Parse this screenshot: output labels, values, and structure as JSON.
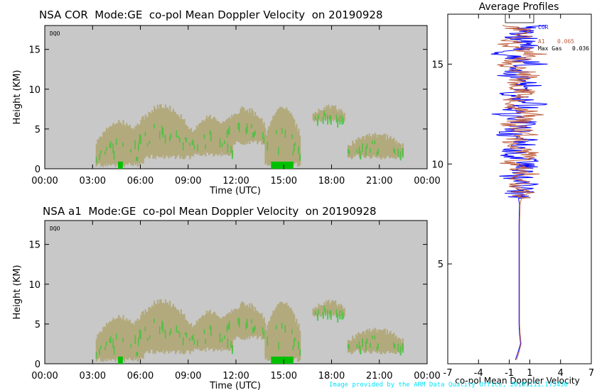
{
  "panels": [
    {
      "title": "NSA COR  Mode:GE  co-pol Mean Doppler Velocity  on 20190928",
      "badge": "DQO",
      "ylabel": "Height (KM)",
      "xlabel": "Time (UTC)"
    },
    {
      "title": "NSA a1  Mode:GE  co-pol Mean Doppler Velocity  on 20190928",
      "badge": "DQO",
      "ylabel": "Height (KM)",
      "xlabel": "Time (UTC)"
    }
  ],
  "profile": {
    "title": "Average Profiles",
    "xlabel": "co-pol Mean Doppler Velocity",
    "legend": [
      {
        "label": "COR",
        "color": "#0000ff"
      },
      {
        "label": "A1",
        "value": "0.065",
        "color": "#c06040"
      },
      {
        "label": "Max Gas",
        "value": "0.036",
        "color": "#000000"
      }
    ]
  },
  "footer": "Image provided by the ARM Data Quality Office, 20191111.175430",
  "colors": {
    "background": "#c8c8c8",
    "cloud": "#b2aa7d",
    "updraft": "#33c733",
    "cor_line": "#0000ff",
    "a1_line": "#c06040"
  },
  "chart_data": [
    {
      "type": "heatmap",
      "title": "NSA COR  Mode:GE  co-pol Mean Doppler Velocity  on 20190928",
      "xlabel": "Time (UTC)",
      "ylabel": "Height (KM)",
      "xticks": [
        "00:00",
        "03:00",
        "06:00",
        "09:00",
        "12:00",
        "15:00",
        "18:00",
        "21:00",
        "00:00"
      ],
      "yticks": [
        0,
        5,
        10,
        15
      ],
      "xlim_hours": [
        0,
        24
      ],
      "ylim": [
        0,
        18
      ],
      "cloud_layers": [
        {
          "t_start": 3.2,
          "t_end": 6.2,
          "base_km": 0.2,
          "top_km": 5.8
        },
        {
          "t_start": 5.5,
          "t_end": 9.2,
          "base_km": 1.2,
          "top_km": 7.8
        },
        {
          "t_start": 9.0,
          "t_end": 11.8,
          "base_km": 1.5,
          "top_km": 6.5
        },
        {
          "t_start": 11.2,
          "t_end": 13.8,
          "base_km": 3.0,
          "top_km": 7.5
        },
        {
          "t_start": 13.8,
          "t_end": 16.0,
          "base_km": 0.2,
          "top_km": 7.5
        },
        {
          "t_start": 16.8,
          "t_end": 18.8,
          "base_km": 5.8,
          "top_km": 7.8
        },
        {
          "t_start": 19.0,
          "t_end": 22.5,
          "base_km": 1.2,
          "top_km": 4.2
        }
      ]
    },
    {
      "type": "heatmap",
      "title": "NSA a1  Mode:GE  co-pol Mean Doppler Velocity  on 20190928",
      "xlabel": "Time (UTC)",
      "ylabel": "Height (KM)",
      "xticks": [
        "00:00",
        "03:00",
        "06:00",
        "09:00",
        "12:00",
        "15:00",
        "18:00",
        "21:00",
        "00:00"
      ],
      "yticks": [
        0,
        5,
        10,
        15
      ],
      "xlim_hours": [
        0,
        24
      ],
      "ylim": [
        0,
        18
      ],
      "cloud_layers": [
        {
          "t_start": 3.2,
          "t_end": 6.2,
          "base_km": 0.2,
          "top_km": 5.8
        },
        {
          "t_start": 5.5,
          "t_end": 9.2,
          "base_km": 1.2,
          "top_km": 7.8
        },
        {
          "t_start": 9.0,
          "t_end": 11.8,
          "base_km": 1.5,
          "top_km": 6.5
        },
        {
          "t_start": 11.2,
          "t_end": 13.8,
          "base_km": 3.0,
          "top_km": 7.5
        },
        {
          "t_start": 13.8,
          "t_end": 16.0,
          "base_km": 0.2,
          "top_km": 7.5
        },
        {
          "t_start": 16.8,
          "t_end": 18.8,
          "base_km": 5.8,
          "top_km": 7.8
        },
        {
          "t_start": 19.0,
          "t_end": 22.5,
          "base_km": 1.2,
          "top_km": 4.2
        }
      ]
    },
    {
      "type": "line",
      "title": "Average Profiles",
      "xlabel": "co-pol Mean Doppler Velocity",
      "xticks": [
        -7,
        -4,
        -1,
        1,
        4,
        7
      ],
      "yticks": [
        5,
        10,
        15
      ],
      "xlim": [
        -7,
        7
      ],
      "ylim": [
        0,
        17.5
      ],
      "series": [
        {
          "name": "COR",
          "color": "#0000ff",
          "heights_km": [
            0.2,
            0.5,
            1.0,
            1.5,
            2.0,
            3.0,
            4.0,
            5.0,
            6.0,
            7.0,
            8.0,
            8.5,
            9.0,
            9.5,
            10.0,
            10.5,
            11.0,
            11.5,
            12.0,
            12.5,
            13.0,
            13.5,
            14.0,
            14.5,
            15.0,
            15.5,
            16.0,
            16.5,
            17.0
          ],
          "velocity": [
            -0.4,
            -0.2,
            0.1,
            0.0,
            -0.05,
            -0.05,
            -0.05,
            -0.05,
            -0.05,
            -0.05,
            0.0,
            -0.2,
            0.3,
            -0.6,
            0.8,
            -0.9,
            1.0,
            -0.8,
            0.6,
            -1.2,
            1.1,
            -0.7,
            0.9,
            -1.0,
            1.3,
            -1.5,
            1.2,
            -0.6,
            1.6
          ]
        },
        {
          "name": "A1",
          "color": "#c06040",
          "heights_km": [
            0.2,
            0.5,
            1.0,
            1.5,
            2.0,
            3.0,
            4.0,
            5.0,
            6.0,
            7.0,
            8.0,
            8.5,
            9.0,
            9.5,
            10.0,
            10.5,
            11.0,
            11.5,
            12.0,
            12.5,
            13.0,
            13.5,
            14.0,
            14.5,
            15.0,
            15.5,
            16.0,
            16.5,
            17.0
          ],
          "velocity": [
            -0.3,
            -0.1,
            0.15,
            0.05,
            0.0,
            0.0,
            0.0,
            0.0,
            0.0,
            0.0,
            0.05,
            0.3,
            -0.4,
            0.7,
            -0.9,
            1.0,
            -1.1,
            0.9,
            -0.7,
            1.3,
            -1.2,
            0.8,
            -1.0,
            1.1,
            -1.4,
            1.6,
            -1.3,
            0.7,
            -1.0
          ]
        }
      ]
    }
  ]
}
